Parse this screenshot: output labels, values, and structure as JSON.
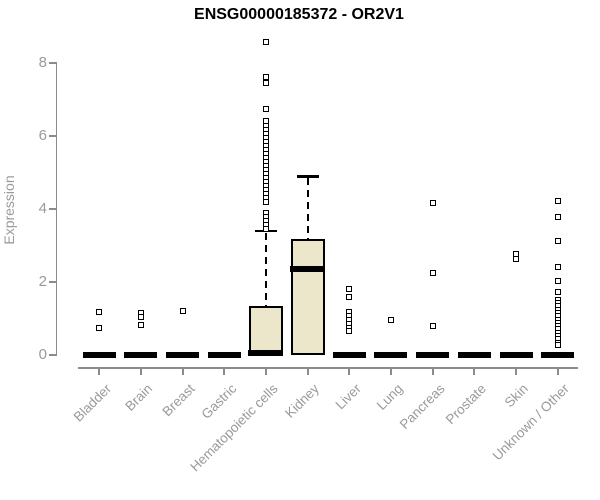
{
  "chart_data": {
    "type": "boxplot",
    "title": "ENSG00000185372 - OR2V1",
    "ylabel": "Expression",
    "xlabel": "",
    "ylim": [
      0,
      8.7
    ],
    "yticks": [
      0,
      2,
      4,
      6,
      8
    ],
    "grid": false,
    "legend": "none",
    "colors": {
      "box_fill": "#ece7cb",
      "box_stroke": "#000000",
      "axis": "#8b8b8b",
      "tick_label": "#9a9a9a",
      "title": "#000000"
    },
    "categories": [
      "Bladder",
      "Brain",
      "Breast",
      "Gastric",
      "Hematopoietic cells",
      "Kidney",
      "Liver",
      "Lung",
      "Pancreas",
      "Prostate",
      "Skin",
      "Unknown / Other"
    ],
    "boxes": [
      {
        "category": "Bladder",
        "whisker_low": 0,
        "q1": 0,
        "median": 0,
        "q3": 0,
        "whisker_high": 0,
        "outliers": [
          1.19,
          0.75
        ]
      },
      {
        "category": "Brain",
        "whisker_low": 0,
        "q1": 0,
        "median": 0,
        "q3": 0,
        "whisker_high": 0,
        "outliers": [
          1.15,
          1.05,
          0.82
        ]
      },
      {
        "category": "Breast",
        "whisker_low": 0,
        "q1": 0,
        "median": 0,
        "q3": 0,
        "whisker_high": 0,
        "outliers": [
          1.21
        ]
      },
      {
        "category": "Gastric",
        "whisker_low": 0,
        "q1": 0,
        "median": 0,
        "q3": 0,
        "whisker_high": 0,
        "outliers": []
      },
      {
        "category": "Hematopoietic cells",
        "whisker_low": 0,
        "q1": 0,
        "median": 0.05,
        "q3": 1.33,
        "whisker_high": 3.4,
        "outliers": [
          8.58,
          7.63,
          7.44,
          6.73,
          6.4,
          6.28,
          6.17,
          6.06,
          5.95,
          5.84,
          5.73,
          5.62,
          5.51,
          5.4,
          5.29,
          5.18,
          5.07,
          4.96,
          4.85,
          4.74,
          4.63,
          4.52,
          4.41,
          4.3,
          4.2,
          3.88,
          3.77,
          3.66,
          3.55,
          3.45
        ]
      },
      {
        "category": "Kidney",
        "whisker_low": 0,
        "q1": 0,
        "median": 2.36,
        "q3": 3.17,
        "whisker_high": 4.9,
        "outliers": []
      },
      {
        "category": "Liver",
        "whisker_low": 0,
        "q1": 0,
        "median": 0,
        "q3": 0,
        "whisker_high": 0,
        "outliers": [
          1.82,
          1.6,
          1.19,
          1.08,
          0.97,
          0.86,
          0.75,
          0.65
        ]
      },
      {
        "category": "Lung",
        "whisker_low": 0,
        "q1": 0,
        "median": 0,
        "q3": 0,
        "whisker_high": 0,
        "outliers": [
          0.96
        ]
      },
      {
        "category": "Pancreas",
        "whisker_low": 0,
        "q1": 0,
        "median": 0,
        "q3": 0,
        "whisker_high": 0,
        "outliers": [
          4.17,
          2.25,
          0.8
        ]
      },
      {
        "category": "Prostate",
        "whisker_low": 0,
        "q1": 0,
        "median": 0,
        "q3": 0,
        "whisker_high": 0,
        "outliers": []
      },
      {
        "category": "Skin",
        "whisker_low": 0,
        "q1": 0,
        "median": 0,
        "q3": 0,
        "whisker_high": 0,
        "outliers": [
          2.77,
          2.63
        ]
      },
      {
        "category": "Unknown / Other",
        "whisker_low": 0,
        "q1": 0,
        "median": 0,
        "q3": 0,
        "whisker_high": 0,
        "outliers": [
          4.22,
          3.79,
          3.13,
          2.4,
          2.03,
          1.72,
          1.51,
          1.42,
          1.33,
          1.24,
          1.15,
          1.06,
          0.97,
          0.88,
          0.79,
          0.7,
          0.61,
          0.52,
          0.43,
          0.34,
          0.27
        ]
      }
    ]
  }
}
